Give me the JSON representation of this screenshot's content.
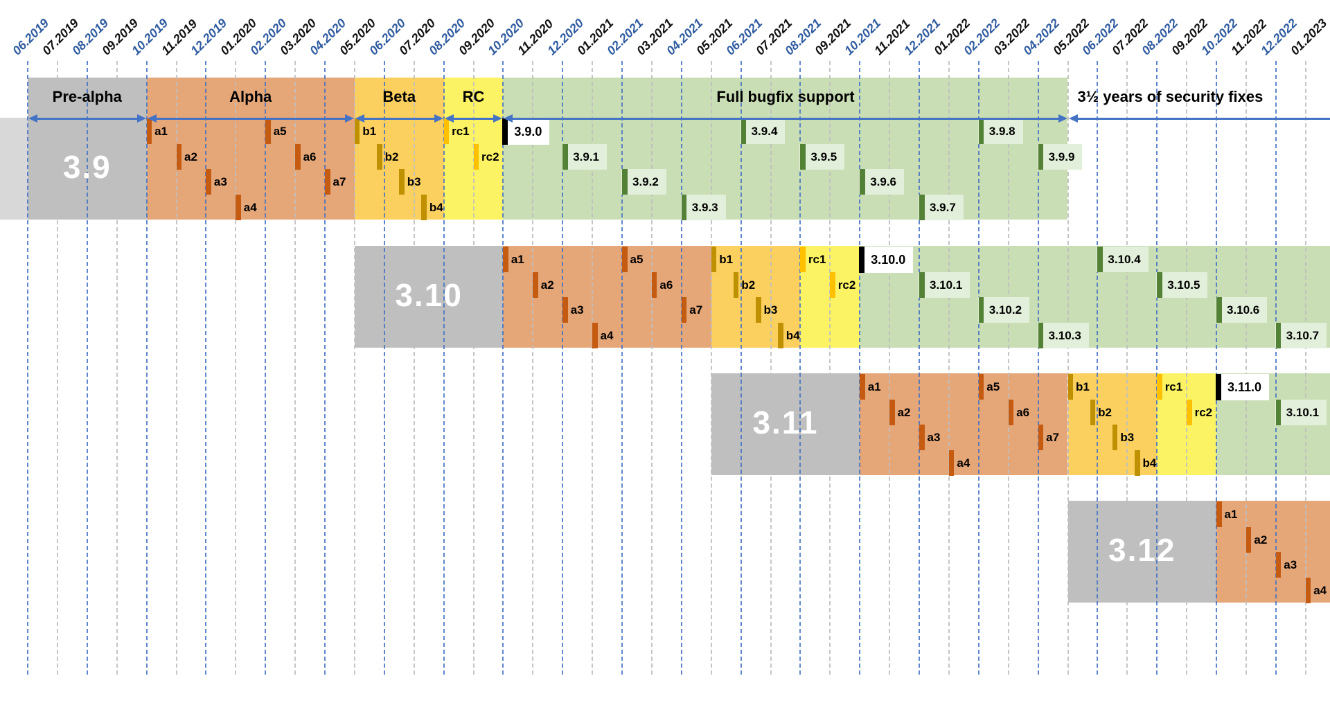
{
  "chart_data": {
    "type": "gantt-timeline",
    "x_axis": {
      "unit": "month",
      "start": "06.2019",
      "end": "01.2023",
      "labels": [
        "06.2019",
        "07.2019",
        "08.2019",
        "09.2019",
        "10.2019",
        "11.2019",
        "12.2019",
        "01.2020",
        "02.2020",
        "03.2020",
        "04.2020",
        "05.2020",
        "06.2020",
        "07.2020",
        "08.2020",
        "09.2020",
        "10.2020",
        "11.2020",
        "12.2020",
        "01.2021",
        "02.2021",
        "03.2021",
        "04.2021",
        "05.2021",
        "06.2021",
        "07.2021",
        "08.2021",
        "09.2021",
        "10.2021",
        "11.2021",
        "12.2021",
        "01.2022",
        "02.2022",
        "03.2022",
        "04.2022",
        "05.2022",
        "06.2022",
        "07.2022",
        "08.2022",
        "09.2022",
        "10.2022",
        "11.2022",
        "12.2022",
        "01.2023"
      ],
      "even_months_highlighted_blue": true,
      "grid": true
    },
    "phase_kinds": [
      "pre-alpha",
      "alpha",
      "beta",
      "rc",
      "bugfix"
    ],
    "marker_schema": [
      "label",
      "month_index_from_06.2019",
      "stagger_level",
      "kind"
    ],
    "rows": [
      {
        "version": "3.9",
        "lead_in_before_start": true,
        "phase_header": [
          {
            "label": "Pre-alpha",
            "start": 0,
            "end": 4
          },
          {
            "label": "Alpha",
            "start": 4,
            "end": 11
          },
          {
            "label": "Beta",
            "start": 11,
            "end": 14
          },
          {
            "label": "RC",
            "start": 14,
            "end": 16
          },
          {
            "label": "Full bugfix support",
            "start": 16,
            "end": 35
          },
          {
            "label": "3½ years of security fixes",
            "start": 35,
            "end": 44,
            "arrow_right": false,
            "align": "left"
          }
        ],
        "phases": [
          {
            "kind": "pre-alpha",
            "start": 0,
            "end": 4
          },
          {
            "kind": "alpha",
            "start": 4,
            "end": 11
          },
          {
            "kind": "beta",
            "start": 11,
            "end": 14
          },
          {
            "kind": "rc",
            "start": 14,
            "end": 16
          },
          {
            "kind": "bugfix",
            "start": 16,
            "end": 35
          }
        ],
        "markers": [
          [
            "a1",
            4,
            0,
            "alpha"
          ],
          [
            "a2",
            5,
            1,
            "alpha"
          ],
          [
            "a3",
            6,
            2,
            "alpha"
          ],
          [
            "a4",
            7,
            3,
            "alpha"
          ],
          [
            "a5",
            8,
            0,
            "alpha"
          ],
          [
            "a6",
            9,
            1,
            "alpha"
          ],
          [
            "a7",
            10,
            2,
            "alpha"
          ],
          [
            "b1",
            11,
            0,
            "beta"
          ],
          [
            "b2",
            11.75,
            1,
            "beta"
          ],
          [
            "b3",
            12.5,
            2,
            "beta"
          ],
          [
            "b4",
            13.25,
            3,
            "beta"
          ],
          [
            "rc1",
            14,
            0,
            "rc"
          ],
          [
            "rc2",
            15,
            1,
            "rc"
          ],
          [
            "3.9.0",
            16,
            0,
            "release"
          ],
          [
            "3.9.1",
            18,
            1,
            "bugfix"
          ],
          [
            "3.9.2",
            20,
            2,
            "bugfix"
          ],
          [
            "3.9.3",
            22,
            3,
            "bugfix"
          ],
          [
            "3.9.4",
            24,
            0,
            "bugfix"
          ],
          [
            "3.9.5",
            26,
            1,
            "bugfix"
          ],
          [
            "3.9.6",
            28,
            2,
            "bugfix"
          ],
          [
            "3.9.7",
            30,
            3,
            "bugfix"
          ],
          [
            "3.9.8",
            32,
            0,
            "bugfix"
          ],
          [
            "3.9.9",
            34,
            1,
            "bugfix"
          ]
        ]
      },
      {
        "version": "3.10",
        "lead_in_before_start": false,
        "phases": [
          {
            "kind": "pre-alpha",
            "start": 11,
            "end": 16
          },
          {
            "kind": "alpha",
            "start": 16,
            "end": 23
          },
          {
            "kind": "beta",
            "start": 23,
            "end": 26
          },
          {
            "kind": "rc",
            "start": 26,
            "end": 28
          },
          {
            "kind": "bugfix",
            "start": 28,
            "end": 44
          }
        ],
        "markers": [
          [
            "a1",
            16,
            0,
            "alpha"
          ],
          [
            "a2",
            17,
            1,
            "alpha"
          ],
          [
            "a3",
            18,
            2,
            "alpha"
          ],
          [
            "a4",
            19,
            3,
            "alpha"
          ],
          [
            "a5",
            20,
            0,
            "alpha"
          ],
          [
            "a6",
            21,
            1,
            "alpha"
          ],
          [
            "a7",
            22,
            2,
            "alpha"
          ],
          [
            "b1",
            23,
            0,
            "beta"
          ],
          [
            "b2",
            23.75,
            1,
            "beta"
          ],
          [
            "b3",
            24.5,
            2,
            "beta"
          ],
          [
            "b4",
            25.25,
            3,
            "beta"
          ],
          [
            "rc1",
            26,
            0,
            "rc"
          ],
          [
            "rc2",
            27,
            1,
            "rc"
          ],
          [
            "3.10.0",
            28,
            0,
            "release"
          ],
          [
            "3.10.1",
            30,
            1,
            "bugfix"
          ],
          [
            "3.10.2",
            32,
            2,
            "bugfix"
          ],
          [
            "3.10.3",
            34,
            3,
            "bugfix"
          ],
          [
            "3.10.4",
            36,
            0,
            "bugfix"
          ],
          [
            "3.10.5",
            38,
            1,
            "bugfix"
          ],
          [
            "3.10.6",
            40,
            2,
            "bugfix"
          ],
          [
            "3.10.7",
            42,
            3,
            "bugfix"
          ]
        ]
      },
      {
        "version": "3.11",
        "lead_in_before_start": false,
        "phases": [
          {
            "kind": "pre-alpha",
            "start": 23,
            "end": 28
          },
          {
            "kind": "alpha",
            "start": 28,
            "end": 35
          },
          {
            "kind": "beta",
            "start": 35,
            "end": 38
          },
          {
            "kind": "rc",
            "start": 38,
            "end": 40
          },
          {
            "kind": "bugfix",
            "start": 40,
            "end": 44
          }
        ],
        "markers": [
          [
            "a1",
            28,
            0,
            "alpha"
          ],
          [
            "a2",
            29,
            1,
            "alpha"
          ],
          [
            "a3",
            30,
            2,
            "alpha"
          ],
          [
            "a4",
            31,
            3,
            "alpha"
          ],
          [
            "a5",
            32,
            0,
            "alpha"
          ],
          [
            "a6",
            33,
            1,
            "alpha"
          ],
          [
            "a7",
            34,
            2,
            "alpha"
          ],
          [
            "b1",
            35,
            0,
            "beta"
          ],
          [
            "b2",
            35.75,
            1,
            "beta"
          ],
          [
            "b3",
            36.5,
            2,
            "beta"
          ],
          [
            "b4",
            37.25,
            3,
            "beta"
          ],
          [
            "rc1",
            38,
            0,
            "rc"
          ],
          [
            "rc2",
            39,
            1,
            "rc"
          ],
          [
            "3.11.0",
            40,
            0,
            "release"
          ],
          [
            "3.10.1",
            42,
            1,
            "bugfix"
          ]
        ]
      },
      {
        "version": "3.12",
        "lead_in_before_start": false,
        "phases": [
          {
            "kind": "pre-alpha",
            "start": 35,
            "end": 40
          },
          {
            "kind": "alpha",
            "start": 40,
            "end": 44
          }
        ],
        "markers": [
          [
            "a1",
            40,
            0,
            "alpha"
          ],
          [
            "a2",
            41,
            1,
            "alpha"
          ],
          [
            "a3",
            42,
            2,
            "alpha"
          ],
          [
            "a4",
            43,
            3,
            "alpha"
          ]
        ]
      }
    ],
    "colors": {
      "band_pre_alpha": "#bfbfbf",
      "band_lead_in": "#d8d8d8",
      "band_alpha": "#e5a678",
      "band_beta": "#fcd05f",
      "band_rc": "#fbf364",
      "band_bugfix": "#c9deb4",
      "marker_alpha": "#c55a11",
      "marker_beta": "#bf9000",
      "marker_rc": "#ffc000",
      "marker_bugfix": "#538135",
      "marker_release": "#000000",
      "bugfix_label_bg": "#e2efda",
      "release_label_bg": "#ffffff",
      "arrow_blue": "#4472c4",
      "axis_label_blue": "#2f5b9f",
      "axis_label_black": "#111111",
      "gridline_blue": "#4472c4",
      "gridline_gray": "#bfbfbf",
      "version_text": "#ffffff"
    }
  }
}
